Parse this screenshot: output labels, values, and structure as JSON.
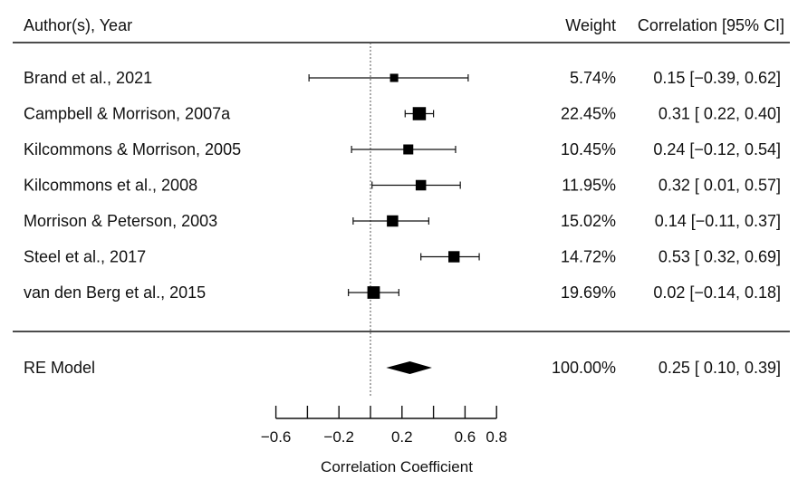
{
  "header": {
    "author_col": "Author(s), Year",
    "weight_col": "Weight",
    "ci_col": "Correlation [95% CI]"
  },
  "chart_data": {
    "type": "forest",
    "xlabel": "Correlation Coefficient",
    "xlim": [
      -0.6,
      0.8
    ],
    "reference_line": 0,
    "tick_labels": [
      "−0.6",
      "−0.2",
      "0.2",
      "0.6",
      "0.8"
    ],
    "minor_ticks": [
      -0.6,
      -0.4,
      -0.2,
      0,
      0.2,
      0.4,
      0.6,
      0.8
    ],
    "labeled_ticks": [
      -0.6,
      -0.2,
      0.2,
      0.6,
      0.8
    ],
    "studies": [
      {
        "label": "Brand et al., 2021",
        "estimate": 0.15,
        "lower": -0.39,
        "upper": 0.62,
        "weight": 5.74,
        "weight_text": "5.74%",
        "ci_text": "0.15 [−0.39, 0.62]"
      },
      {
        "label": "Campbell & Morrison, 2007a",
        "estimate": 0.31,
        "lower": 0.22,
        "upper": 0.4,
        "weight": 22.45,
        "weight_text": "22.45%",
        "ci_text": "0.31 [ 0.22, 0.40]"
      },
      {
        "label": "Kilcommons & Morrison, 2005",
        "estimate": 0.24,
        "lower": -0.12,
        "upper": 0.54,
        "weight": 10.45,
        "weight_text": "10.45%",
        "ci_text": "0.24 [−0.12, 0.54]"
      },
      {
        "label": "Kilcommons et al., 2008",
        "estimate": 0.32,
        "lower": 0.01,
        "upper": 0.57,
        "weight": 11.95,
        "weight_text": "11.95%",
        "ci_text": "0.32 [ 0.01, 0.57]"
      },
      {
        "label": "Morrison & Peterson, 2003",
        "estimate": 0.14,
        "lower": -0.11,
        "upper": 0.37,
        "weight": 15.02,
        "weight_text": "15.02%",
        "ci_text": "0.14 [−0.11, 0.37]"
      },
      {
        "label": "Steel et al., 2017",
        "estimate": 0.53,
        "lower": 0.32,
        "upper": 0.69,
        "weight": 14.72,
        "weight_text": "14.72%",
        "ci_text": "0.53 [ 0.32, 0.69]"
      },
      {
        "label": "van den Berg et al., 2015",
        "estimate": 0.02,
        "lower": -0.14,
        "upper": 0.18,
        "weight": 19.69,
        "weight_text": "19.69%",
        "ci_text": "0.02 [−0.14, 0.18]"
      }
    ],
    "summary": {
      "label": "RE Model",
      "estimate": 0.25,
      "lower": 0.1,
      "upper": 0.39,
      "weight_text": "100.00%",
      "ci_text": "0.25 [ 0.10, 0.39]"
    }
  }
}
